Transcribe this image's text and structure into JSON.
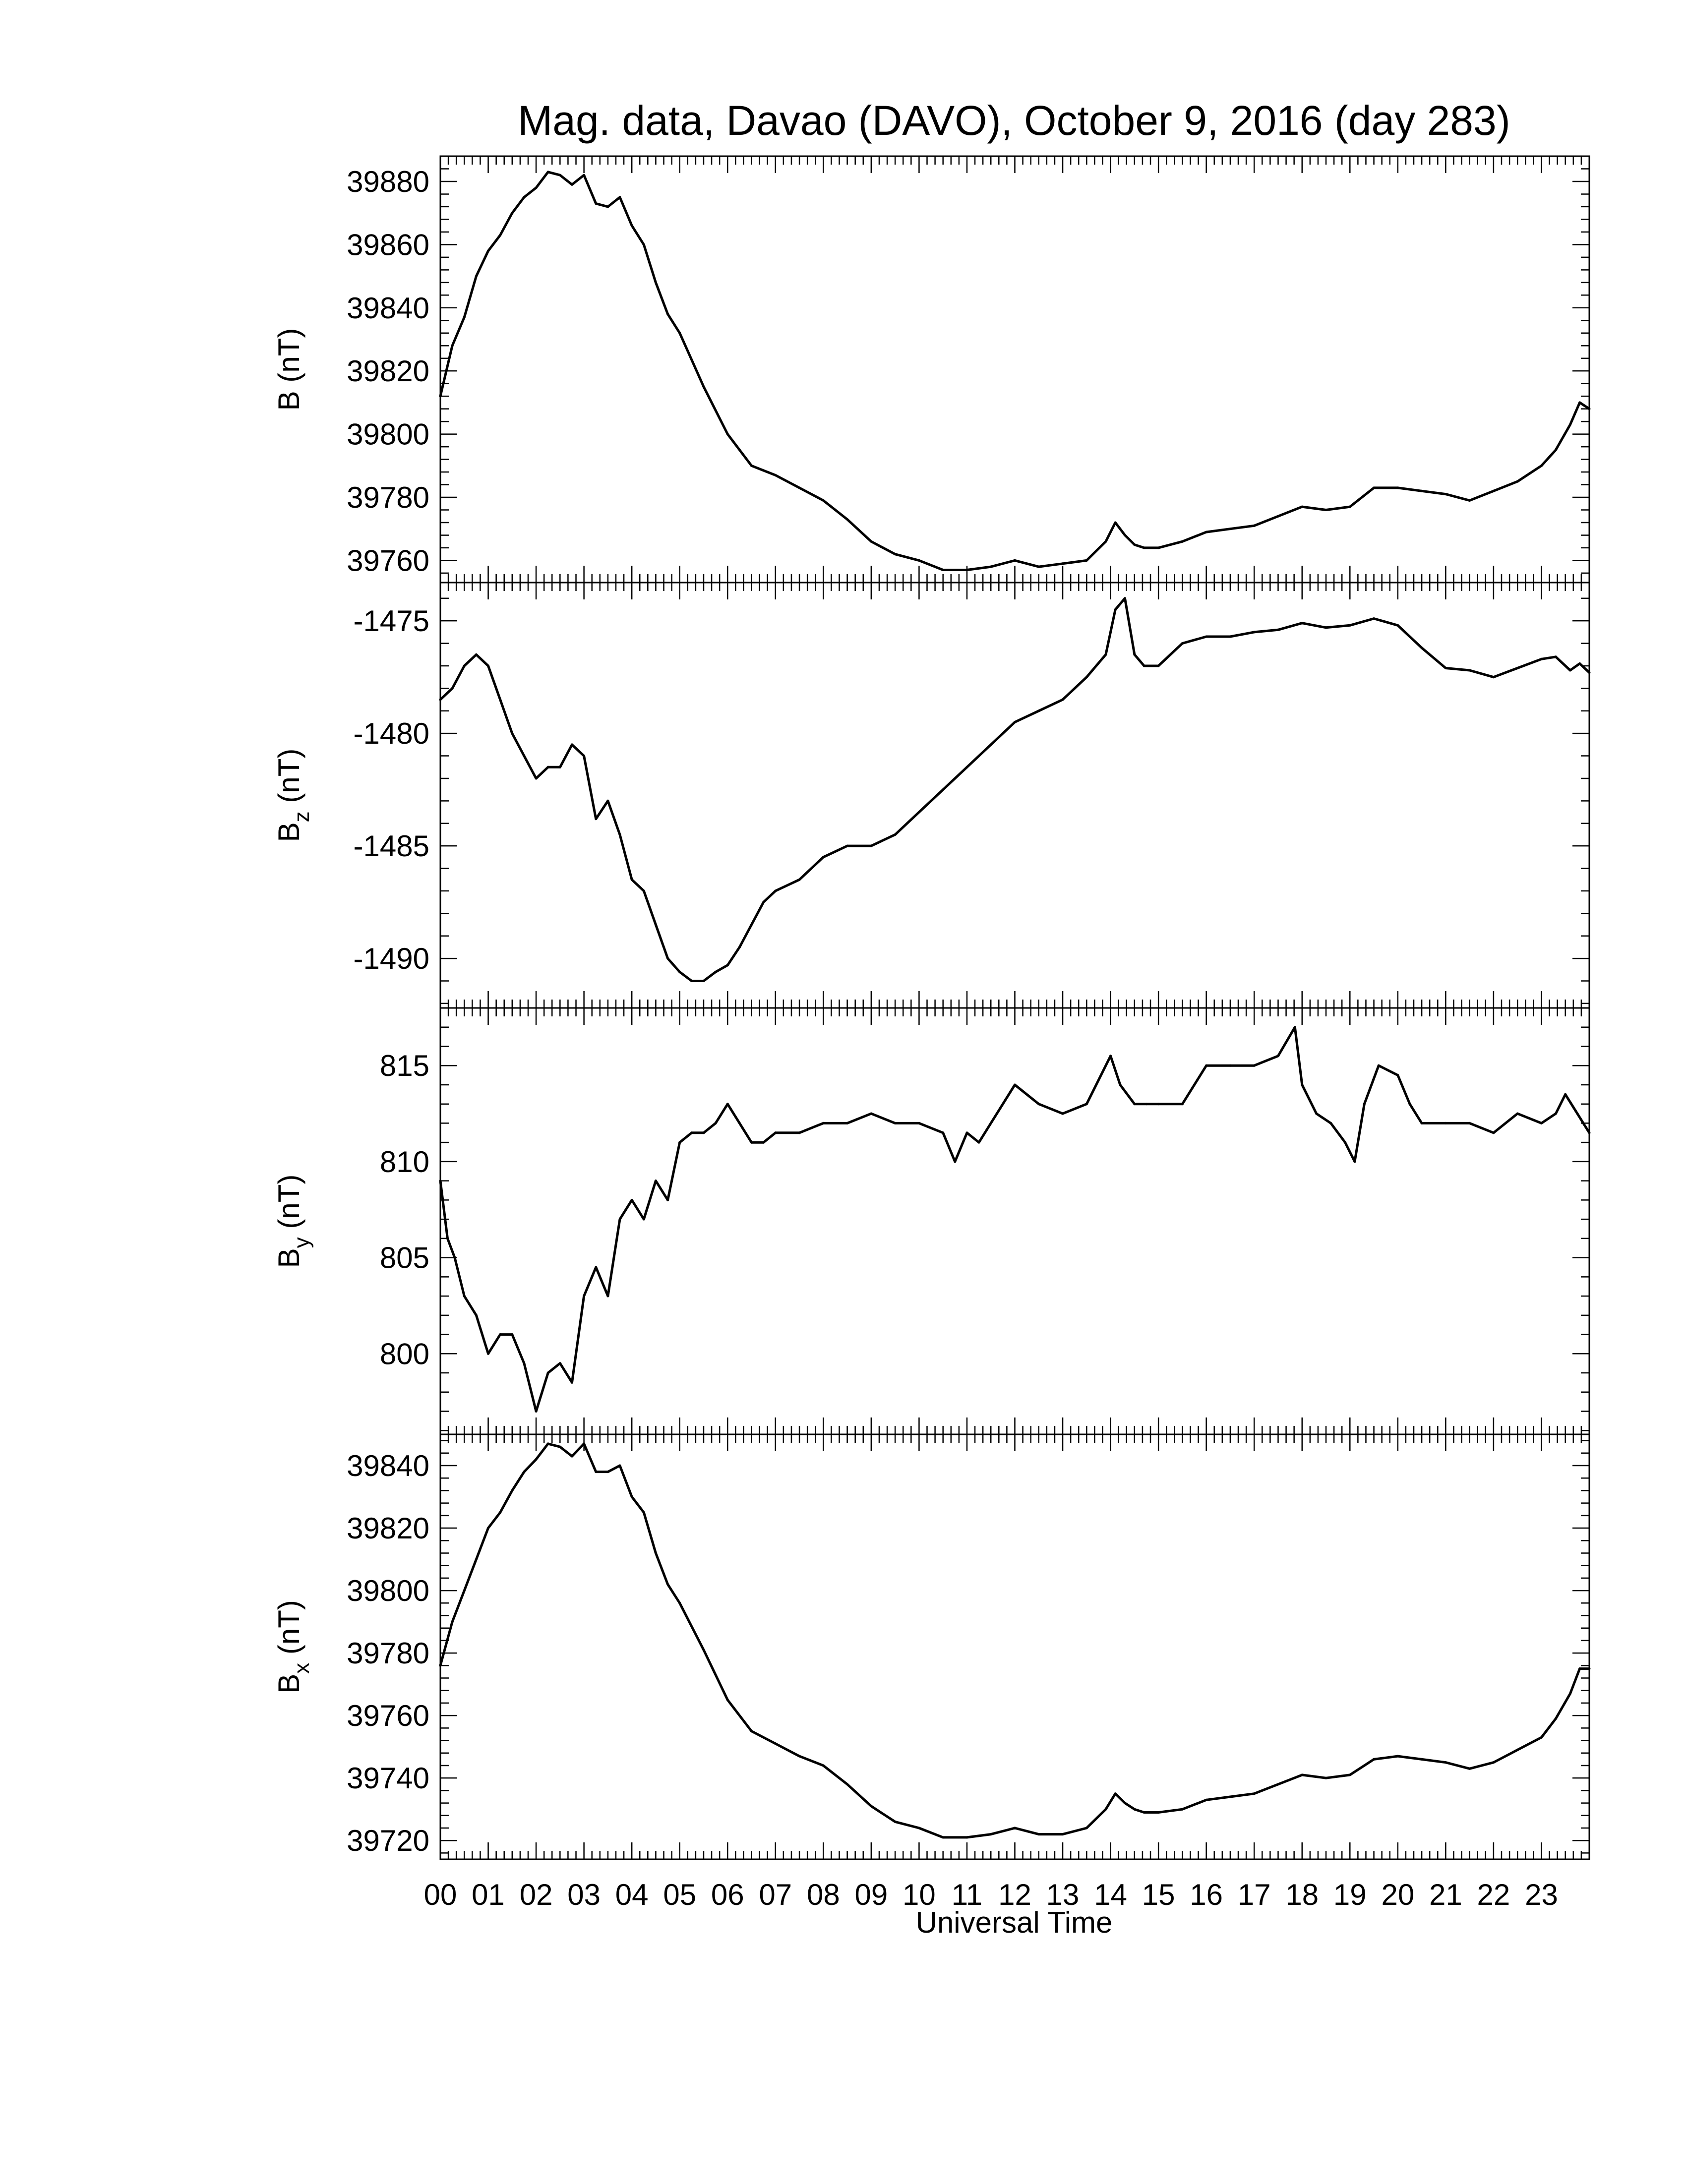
{
  "chart_data": {
    "title": "Mag. data, Davao (DAVO), October 9, 2016 (day 283)",
    "xlabel": "Universal Time",
    "x_unit": "hour (UT)",
    "xlim": [
      0,
      24
    ],
    "x_ticks": [
      "00",
      "01",
      "02",
      "03",
      "04",
      "05",
      "06",
      "07",
      "08",
      "09",
      "10",
      "11",
      "12",
      "13",
      "14",
      "15",
      "16",
      "17",
      "18",
      "19",
      "20",
      "21",
      "22",
      "23"
    ],
    "line_color": "#000000",
    "grid": false,
    "panels": [
      {
        "type": "line",
        "ylabel": "B (nT)",
        "ylabel_main": "B",
        "ylabel_sub": "",
        "ylabel_unit": " (nT)",
        "ylim": [
          39753,
          39888
        ],
        "yticks": [
          39760,
          39780,
          39800,
          39820,
          39840,
          39860,
          39880
        ],
        "series": [
          {
            "x": [
              0,
              0.25,
              0.5,
              0.75,
              1,
              1.25,
              1.5,
              1.75,
              2,
              2.25,
              2.5,
              2.75,
              3,
              3.25,
              3.5,
              3.75,
              4,
              4.25,
              4.5,
              4.75,
              5,
              5.5,
              6,
              6.5,
              7,
              7.5,
              8,
              8.5,
              9,
              9.5,
              10,
              10.5,
              11,
              11.5,
              12,
              12.5,
              13,
              13.5,
              13.9,
              14.1,
              14.3,
              14.5,
              14.7,
              15,
              15.5,
              16,
              16.5,
              17,
              17.5,
              18,
              18.5,
              19,
              19.5,
              20,
              20.5,
              21,
              21.5,
              22,
              22.5,
              23,
              23.3,
              23.6,
              23.8,
              24
            ],
            "y": [
              39812,
              39828,
              39837,
              39850,
              39858,
              39863,
              39870,
              39875,
              39878,
              39883,
              39882,
              39879,
              39882,
              39873,
              39872,
              39875,
              39866,
              39860,
              39848,
              39838,
              39832,
              39815,
              39800,
              39790,
              39787,
              39783,
              39779,
              39773,
              39766,
              39762,
              39760,
              39757,
              39757,
              39758,
              39760,
              39758,
              39759,
              39760,
              39766,
              39772,
              39768,
              39765,
              39764,
              39764,
              39766,
              39769,
              39770,
              39771,
              39774,
              39777,
              39776,
              39777,
              39783,
              39783,
              39782,
              39781,
              39779,
              39782,
              39785,
              39790,
              39795,
              39803,
              39810,
              39808
            ]
          }
        ]
      },
      {
        "type": "line",
        "ylabel": "Bz (nT)",
        "ylabel_main": "B",
        "ylabel_sub": "z",
        "ylabel_unit": " (nT)",
        "ylim": [
          -1492.2,
          -1473.3
        ],
        "yticks": [
          -1490,
          -1485,
          -1480,
          -1475
        ],
        "series": [
          {
            "x": [
              0,
              0.25,
              0.5,
              0.75,
              1,
              1.25,
              1.5,
              1.75,
              2,
              2.25,
              2.5,
              2.75,
              3,
              3.25,
              3.5,
              3.75,
              4,
              4.25,
              4.5,
              4.75,
              5,
              5.25,
              5.5,
              5.75,
              6,
              6.25,
              6.5,
              6.75,
              7,
              7.5,
              8,
              8.5,
              9,
              9.5,
              10,
              10.5,
              11,
              11.5,
              12,
              12.5,
              13,
              13.5,
              13.9,
              14.1,
              14.3,
              14.5,
              14.7,
              15,
              15.5,
              16,
              16.5,
              17,
              17.5,
              18,
              18.5,
              19,
              19.5,
              20,
              20.5,
              21,
              21.5,
              22,
              22.5,
              23,
              23.3,
              23.6,
              23.8,
              24
            ],
            "y": [
              -1478.5,
              -1478,
              -1477,
              -1476.5,
              -1477,
              -1478.5,
              -1480,
              -1481,
              -1482,
              -1481.5,
              -1481.5,
              -1480.5,
              -1481,
              -1483.8,
              -1483,
              -1484.5,
              -1486.5,
              -1487,
              -1488.5,
              -1490,
              -1490.6,
              -1491,
              -1491,
              -1490.6,
              -1490.3,
              -1489.5,
              -1488.5,
              -1487.5,
              -1487,
              -1486.5,
              -1485.5,
              -1485,
              -1485,
              -1484.5,
              -1483.5,
              -1482.5,
              -1481.5,
              -1480.5,
              -1479.5,
              -1479,
              -1478.5,
              -1477.5,
              -1476.5,
              -1474.5,
              -1474,
              -1476.5,
              -1477,
              -1477,
              -1476,
              -1475.7,
              -1475.7,
              -1475.5,
              -1475.4,
              -1475.1,
              -1475.3,
              -1475.2,
              -1474.9,
              -1475.2,
              -1476.2,
              -1477.1,
              -1477.2,
              -1477.5,
              -1477.1,
              -1476.7,
              -1476.6,
              -1477.2,
              -1476.9,
              -1477.3
            ]
          }
        ]
      },
      {
        "type": "line",
        "ylabel": "By (nT)",
        "ylabel_main": "B",
        "ylabel_sub": "y",
        "ylabel_unit": " (nT)",
        "ylim": [
          795.8,
          818
        ],
        "yticks": [
          800,
          805,
          810,
          815
        ],
        "series": [
          {
            "x": [
              0,
              0.15,
              0.3,
              0.5,
              0.75,
              1,
              1.25,
              1.5,
              1.75,
              2,
              2.25,
              2.5,
              2.75,
              3,
              3.25,
              3.5,
              3.75,
              4,
              4.25,
              4.5,
              4.75,
              5,
              5.25,
              5.5,
              5.75,
              6,
              6.25,
              6.5,
              6.75,
              7,
              7.5,
              8,
              8.5,
              9,
              9.5,
              10,
              10.5,
              10.75,
              11,
              11.25,
              11.5,
              12,
              12.5,
              13,
              13.5,
              14,
              14.2,
              14.5,
              14.75,
              15,
              15.5,
              16,
              16.5,
              17,
              17.5,
              17.85,
              18,
              18.3,
              18.6,
              18.9,
              19.1,
              19.3,
              19.6,
              20,
              20.25,
              20.5,
              21,
              21.5,
              22,
              22.5,
              23,
              23.3,
              23.5,
              23.75,
              24
            ],
            "y": [
              809,
              806,
              805,
              803,
              802,
              800,
              801,
              801,
              799.5,
              797,
              799,
              799.5,
              798.5,
              803,
              804.5,
              803,
              807,
              808,
              807,
              809,
              808,
              811,
              811.5,
              811.5,
              812,
              813,
              812,
              811,
              811,
              811.5,
              811.5,
              812,
              812,
              812.5,
              812,
              812,
              811.5,
              810,
              811.5,
              811,
              812,
              814,
              813,
              812.5,
              813,
              815.5,
              814,
              813,
              813,
              813,
              813,
              815,
              815,
              815,
              815.5,
              817,
              814,
              812.5,
              812,
              811,
              810,
              813,
              815,
              814.5,
              813,
              812,
              812,
              812,
              811.5,
              812.5,
              812,
              812.5,
              813.5,
              812.5,
              811.5
            ]
          }
        ]
      },
      {
        "type": "line",
        "ylabel": "Bx (nT)",
        "ylabel_main": "B",
        "ylabel_sub": "x",
        "ylabel_unit": " (nT)",
        "ylim": [
          39714,
          39850
        ],
        "yticks": [
          39720,
          39740,
          39760,
          39780,
          39800,
          39820,
          39840
        ],
        "series": [
          {
            "x": [
              0,
              0.25,
              0.5,
              0.75,
              1,
              1.25,
              1.5,
              1.75,
              2,
              2.25,
              2.5,
              2.75,
              3,
              3.25,
              3.5,
              3.75,
              4,
              4.25,
              4.5,
              4.75,
              5,
              5.5,
              6,
              6.5,
              7,
              7.5,
              8,
              8.5,
              9,
              9.5,
              10,
              10.5,
              11,
              11.5,
              12,
              12.5,
              13,
              13.5,
              13.9,
              14.1,
              14.3,
              14.5,
              14.7,
              15,
              15.5,
              16,
              16.5,
              17,
              17.5,
              18,
              18.5,
              19,
              19.5,
              20,
              20.5,
              21,
              21.5,
              22,
              22.5,
              23,
              23.3,
              23.6,
              23.8,
              24
            ],
            "y": [
              39776,
              39790,
              39800,
              39810,
              39820,
              39825,
              39832,
              39838,
              39842,
              39847,
              39846,
              39843,
              39847,
              39838,
              39838,
              39840,
              39830,
              39825,
              39812,
              39802,
              39796,
              39781,
              39765,
              39755,
              39751,
              39747,
              39744,
              39738,
              39731,
              39726,
              39724,
              39721,
              39721,
              39722,
              39724,
              39722,
              39722,
              39724,
              39730,
              39735,
              39732,
              39730,
              39729,
              39729,
              39730,
              39733,
              39734,
              39735,
              39738,
              39741,
              39740,
              39741,
              39746,
              39747,
              39746,
              39745,
              39743,
              39745,
              39749,
              39753,
              39759,
              39767,
              39775,
              39775
            ]
          }
        ]
      }
    ]
  }
}
